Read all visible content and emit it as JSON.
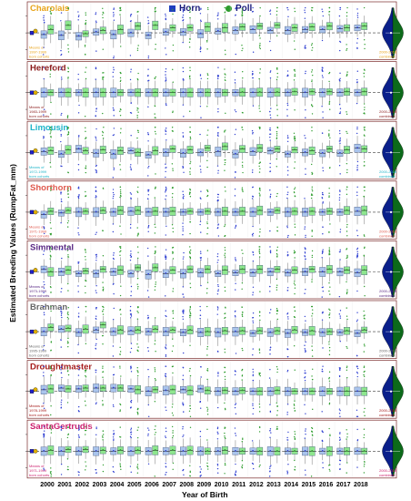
{
  "legend": {
    "horn_label": "Horn",
    "poll_label": "Poll",
    "horn_color": "#1f3fbf",
    "poll_color": "#2e9b2e"
  },
  "axis": {
    "y_label": "Estimated Breeding Values (RumpFat_mm)",
    "x_label": "Year of Birth"
  },
  "colors": {
    "horn_box": "#a9c4ec",
    "poll_box": "#8ee68e",
    "horn_dot": "#2f3fd1",
    "poll_dot": "#2f9d2f",
    "zero_line": "#3a3a3a",
    "panel_border": "#7b2a2a",
    "violin_left": "#0a1f8a",
    "violin_right": "#0c6a1a",
    "panel_zero_dash": "#666"
  },
  "chart_data": {
    "type": "box",
    "x": [
      "2000",
      "2001",
      "2002",
      "2003",
      "2004",
      "2005",
      "2006",
      "2007",
      "2008",
      "2009",
      "2010",
      "2011",
      "2012",
      "2013",
      "2014",
      "2015",
      "2016",
      "2017",
      "2018"
    ],
    "ylim": [
      -3,
      3
    ],
    "panels": [
      {
        "breed": "Charolais",
        "title_color": "#e8a317",
        "side_note": "Means of 1997-1999 born cohorts",
        "dist_note": "2000-2018 combined",
        "horn_median": [
          -0.2,
          -0.3,
          -0.4,
          0.1,
          -0.2,
          0.0,
          -0.3,
          0.1,
          0.1,
          -0.1,
          0.2,
          0.3,
          0.4,
          0.3,
          0.3,
          0.4,
          0.4,
          0.5,
          0.6
        ],
        "poll_median": [
          0.4,
          0.9,
          -0.1,
          0.3,
          0.4,
          0.8,
          0.9,
          0.6,
          0.6,
          0.7,
          0.6,
          0.7,
          0.8,
          0.9,
          0.6,
          0.7,
          0.8,
          0.6,
          0.8
        ]
      },
      {
        "breed": "Hereford",
        "title_color": "#8b1a1a",
        "side_note": "Means of 1983-1999 born cohorts",
        "dist_note": "2000-2018 combined",
        "horn_median": [
          0,
          0,
          0,
          0,
          0,
          0,
          0,
          0,
          0,
          0,
          0,
          0,
          0,
          0,
          0,
          0,
          0,
          0,
          0
        ],
        "poll_median": [
          0,
          0,
          0,
          0,
          0,
          0,
          0,
          0,
          0,
          0,
          0,
          0.05,
          0.05,
          0.05,
          0.1,
          0.1,
          0.1,
          0.1,
          0.1
        ]
      },
      {
        "breed": "Limousin",
        "title_color": "#1fb5c9",
        "side_note": "Means of 1972-1999 born cohorts",
        "dist_note": "2000-2018 combined",
        "horn_median": [
          0.1,
          -0.2,
          0.4,
          -0.1,
          -0.2,
          0.2,
          -0.3,
          0.0,
          -0.1,
          0.0,
          0.1,
          -0.2,
          0.1,
          0.2,
          -0.2,
          0.0,
          -0.1,
          -0.1,
          0.5
        ],
        "poll_median": [
          0.2,
          0.3,
          0.2,
          0.3,
          0.2,
          0.0,
          0.2,
          0.4,
          0.3,
          0.5,
          0.7,
          0.4,
          0.5,
          0.4,
          0.3,
          0.2,
          0.4,
          0.3,
          0.4
        ]
      },
      {
        "breed": "Shorthorn",
        "title_color": "#e0594e",
        "side_note": "Means of 1971-1999 born cohorts",
        "dist_note": "2000-2018 combined",
        "horn_median": [
          -0.3,
          -0.1,
          0.0,
          0.0,
          0.0,
          0.1,
          0.0,
          0.0,
          0.0,
          0.0,
          0.0,
          0.0,
          0.0,
          0.0,
          0.0,
          0.0,
          0.0,
          0.0,
          0.1
        ],
        "poll_median": [
          0.1,
          0.2,
          0.1,
          0.2,
          0.2,
          0.2,
          0.1,
          0.1,
          0.1,
          0.1,
          0.1,
          0.1,
          0.2,
          0.2,
          0.1,
          0.1,
          0.1,
          0.2,
          0.2
        ]
      },
      {
        "breed": "Simmental",
        "title_color": "#5b2a86",
        "side_note": "Means of 1973-1999 born cohorts",
        "dist_note": "2000-2018 combined",
        "horn_median": [
          0.3,
          0.0,
          -0.2,
          -0.2,
          0.0,
          -0.2,
          -0.3,
          -0.2,
          -0.2,
          -0.1,
          -0.2,
          -0.1,
          -0.1,
          0.0,
          -0.1,
          0.0,
          0.0,
          0.0,
          -0.1
        ],
        "poll_median": [
          0.0,
          0.2,
          0.1,
          0.3,
          0.2,
          0.5,
          0.5,
          0.2,
          0.3,
          0.3,
          0.2,
          0.3,
          0.3,
          0.3,
          0.2,
          0.3,
          0.3,
          0.2,
          0.2
        ]
      },
      {
        "breed": "Brahman",
        "title_color": "#666666",
        "side_note": "Means of 1995-1999 born cohorts",
        "dist_note": "2000-2018 combined",
        "horn_median": [
          0.0,
          0.3,
          -0.1,
          0.2,
          0.0,
          0.1,
          0.0,
          0.0,
          -0.1,
          -0.1,
          -0.1,
          0.0,
          -0.2,
          -0.1,
          -0.2,
          -0.1,
          -0.1,
          -0.1,
          -0.2
        ],
        "poll_median": [
          0.5,
          0.4,
          0.3,
          0.8,
          0.2,
          0.2,
          0.3,
          0.2,
          0.2,
          0.0,
          0.1,
          0.1,
          0.1,
          0.1,
          0.2,
          0.1,
          0.0,
          0.1,
          0.2
        ]
      },
      {
        "breed": "Droughtmaster",
        "title_color": "#a51a1a",
        "side_note": "Means of 1978-1999 born cohorts",
        "dist_note": "2000-2018 combined",
        "horn_median": [
          0.2,
          0.4,
          0.3,
          0.4,
          0.4,
          0.3,
          0.0,
          0.1,
          0.2,
          0.3,
          0.0,
          0.0,
          0.0,
          0.0,
          0.0,
          0.0,
          0.0,
          0.0,
          0.0
        ],
        "poll_median": [
          0.3,
          0.3,
          0.4,
          0.4,
          0.4,
          0.2,
          0.2,
          0.2,
          0.1,
          0.1,
          0.1,
          0.1,
          0.0,
          0.1,
          0.0,
          0.0,
          0.0,
          0.0,
          0.0
        ]
      },
      {
        "breed": "SantaGertrudis",
        "title_color": "#cc1f6e",
        "side_note": "Means of 1971-1999 born cohorts",
        "dist_note": "2000-2018 combined",
        "horn_median": [
          0.0,
          0.0,
          0.0,
          0.0,
          0.0,
          0.0,
          0.0,
          0.0,
          0.0,
          0.0,
          0.0,
          0.0,
          0.0,
          0.0,
          0.0,
          0.0,
          0.0,
          0.0,
          0.0
        ],
        "poll_median": [
          0.1,
          0.2,
          0.2,
          0.1,
          0.1,
          0.1,
          0.1,
          0.1,
          0.1,
          0.0,
          0.1,
          0.0,
          0.0,
          0.0,
          0.0,
          0.0,
          0.0,
          0.0,
          0.0
        ]
      }
    ]
  }
}
